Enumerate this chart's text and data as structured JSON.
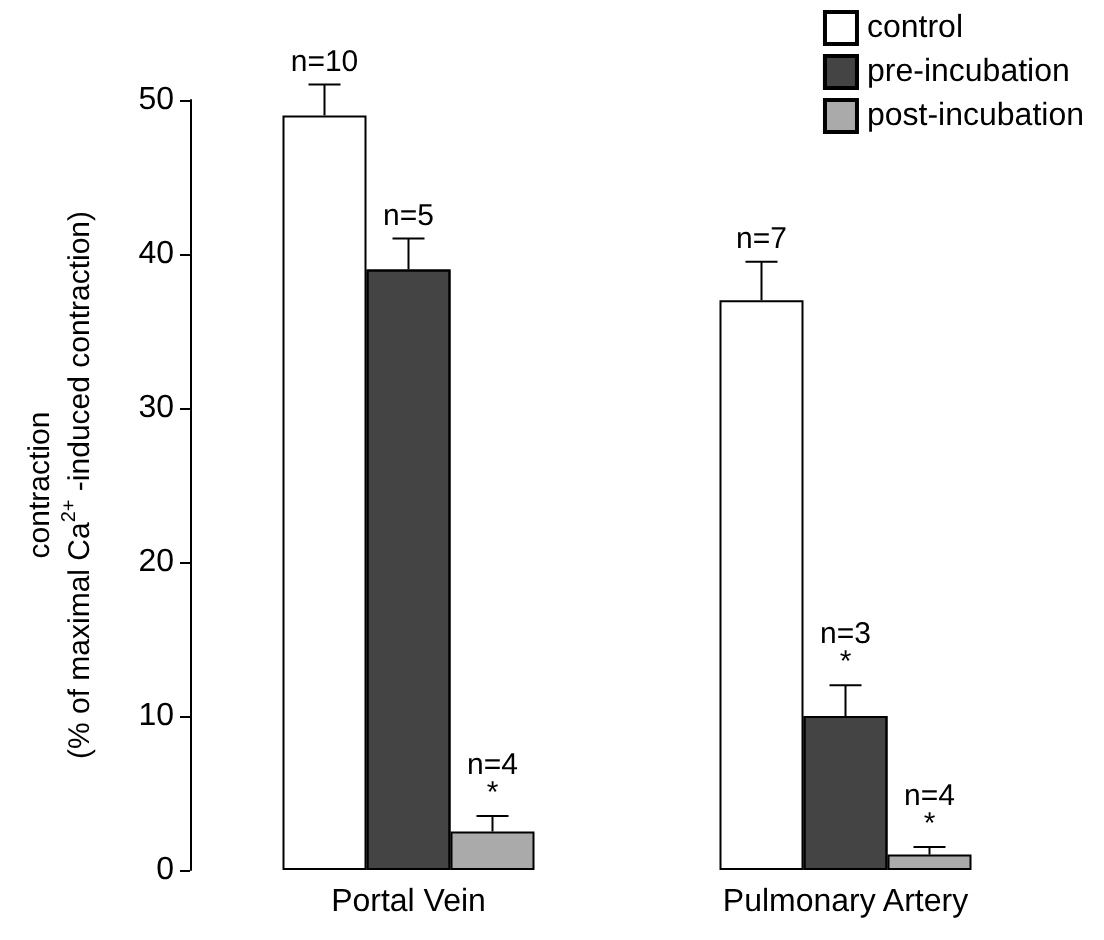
{
  "chart_data": {
    "type": "bar",
    "ylabel": "contraction\n(% of maximal Ca$^{2+}$ -induced contraction)",
    "categories": [
      "Portal Vein",
      "Pulmonary Artery"
    ],
    "series": [
      {
        "name": "control",
        "color": "#ffffff",
        "values": [
          49,
          37
        ],
        "errors": [
          [
            49,
            51
          ],
          [
            37,
            39.5
          ]
        ]
      },
      {
        "name": "pre-incubation",
        "color": "#444444",
        "values": [
          39,
          10
        ],
        "errors": [
          [
            39,
            41
          ],
          [
            10,
            12
          ]
        ]
      },
      {
        "name": "post-incubation",
        "color": "#aaaaaa",
        "values": [
          2.5,
          1
        ],
        "errors": [
          [
            2.5,
            3.5
          ],
          [
            1,
            1.5
          ]
        ]
      }
    ],
    "ylim": [
      0,
      50
    ],
    "yticks": [
      0,
      10,
      20,
      30,
      40,
      50
    ],
    "grid": false,
    "legend": "top right",
    "annotations": [
      "n=10",
      "n=5",
      "n=4",
      "*",
      "n=7",
      "n=3",
      "*",
      "n=4",
      "*"
    ]
  }
}
